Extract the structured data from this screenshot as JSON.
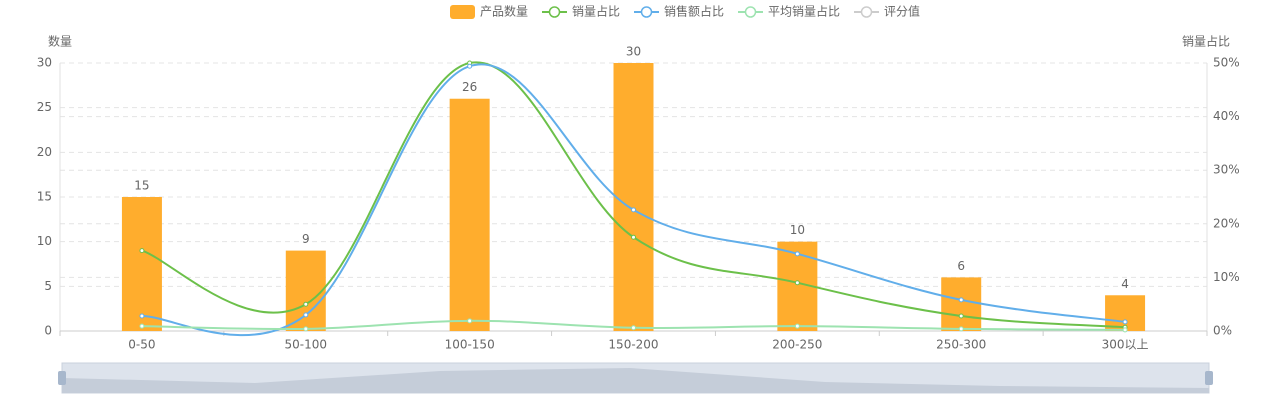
{
  "chart_data": {
    "type": "bar",
    "categories": [
      "0-50",
      "50-100",
      "100-150",
      "150-200",
      "200-250",
      "250-300",
      "300以上"
    ],
    "ylabel": "数量",
    "y2label": "销量占比",
    "ylim": [
      0,
      30
    ],
    "yticks": [
      0,
      5,
      10,
      15,
      20,
      25,
      30
    ],
    "y2lim": [
      0,
      50
    ],
    "y2ticks": [
      {
        "value": 0,
        "label": "0%"
      },
      {
        "value": 10,
        "label": "10%"
      },
      {
        "value": 20,
        "label": "20%"
      },
      {
        "value": 30,
        "label": "30%"
      },
      {
        "value": 40,
        "label": "40%"
      },
      {
        "value": 50,
        "label": "50%"
      }
    ],
    "grid": true,
    "legend": "top",
    "series": [
      {
        "name": "产品数量",
        "type": "bar",
        "color": "#ffad2d",
        "values": [
          15,
          9,
          26,
          30,
          10,
          6,
          4
        ]
      },
      {
        "name": "销量占比",
        "type": "line",
        "axis": "y2",
        "color": "#6cc04a",
        "values": [
          15,
          5,
          50,
          17.5,
          9,
          2.8,
          0.7
        ]
      },
      {
        "name": "销售额占比",
        "type": "line",
        "axis": "y2",
        "color": "#61aeea",
        "values": [
          2.8,
          3,
          49.4,
          22.6,
          14.4,
          5.8,
          1.7
        ]
      },
      {
        "name": "平均销量占比",
        "type": "line",
        "axis": "y2",
        "color": "#9de3b0",
        "values": [
          0.9,
          0.4,
          1.9,
          0.6,
          0.9,
          0.4,
          0.2
        ]
      },
      {
        "name": "评分值",
        "type": "line",
        "axis": "y2",
        "color": "#cccccc",
        "inactive": true,
        "values": [
          null,
          null,
          null,
          null,
          null,
          null,
          null
        ]
      }
    ]
  }
}
